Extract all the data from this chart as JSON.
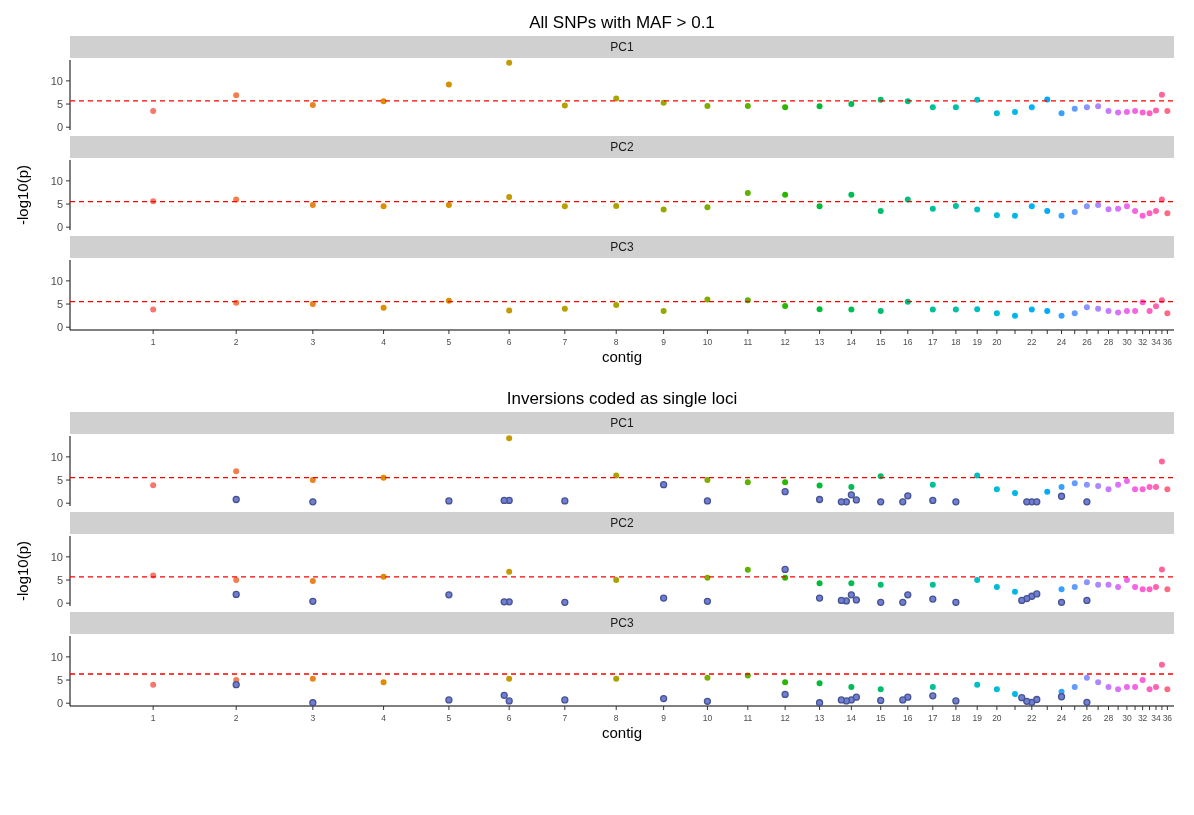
{
  "chart_data": [
    {
      "type": "scatter",
      "title": "All SNPs with MAF > 0.1",
      "subtitle": "PC1",
      "tick_labels": "y",
      "marker": "circle",
      "categories": [
        "1",
        "2",
        "3",
        "4",
        "5",
        "6",
        "7",
        "8",
        "9",
        "10",
        "11",
        "12",
        "13",
        "14",
        "15",
        "16",
        "17",
        "18",
        "19",
        "20",
        null,
        "22",
        null,
        "24",
        null,
        "26",
        null,
        "28",
        null,
        "30",
        null,
        "32",
        null,
        "34",
        null,
        "36"
      ],
      "ylim": [
        -0.6,
        14.5
      ],
      "yticks": [
        0,
        5,
        10
      ],
      "ref_lines": [
        {
          "axis": "y",
          "value": 5.7,
          "color": "#ff0000",
          "line_style": "dashed"
        }
      ],
      "series": [
        {
          "colors": [
            "#F8766D",
            "#F07E4F",
            "#E7851E",
            "#DE8C00",
            "#D29200",
            "#C59900",
            "#B79F00",
            "#A7A400",
            "#95A900",
            "#7CAE00",
            "#5EB300",
            "#2AB700",
            "#00BA38",
            "#00BC55",
            "#00BE6C",
            "#00C081",
            "#00C094",
            "#00C0A6",
            "#00BFC4",
            "#00BCD6",
            "#00B8E7",
            "#00B2F3",
            "#00ABFD",
            "#35A2FF",
            "#619CFF",
            "#8B93FF",
            "#AA88FF",
            "#C77CFF",
            "#DB72FB",
            "#EC69EF",
            "#F564E3",
            "#FC61D5",
            "#FF61C3",
            "#FF62B0",
            "#FF659C",
            "#FC6B86"
          ],
          "values": [
            3.5,
            6.9,
            4.8,
            5.6,
            9.2,
            13.9,
            4.7,
            6.2,
            5.3,
            4.6,
            4.6,
            4.3,
            4.5,
            5.0,
            5.9,
            5.6,
            4.3,
            4.3,
            5.9,
            3.0,
            3.3,
            4.3,
            6.0,
            3.0,
            4.0,
            4.3,
            4.5,
            3.5,
            3.2,
            3.3,
            3.5,
            3.2,
            3.0,
            3.6,
            7.0,
            3.5
          ]
        }
      ]
    },
    {
      "type": "scatter",
      "subtitle": "PC2",
      "ylabel": "-log10(p)",
      "tick_labels": "y",
      "marker": "circle",
      "categories": [
        "1",
        "2",
        "3",
        "4",
        "5",
        "6",
        "7",
        "8",
        "9",
        "10",
        "11",
        "12",
        "13",
        "14",
        "15",
        "16",
        "17",
        "18",
        "19",
        "20",
        null,
        "22",
        null,
        "24",
        null,
        "26",
        null,
        "28",
        null,
        "30",
        null,
        "32",
        null,
        "34",
        null,
        "36"
      ],
      "ylim": [
        -0.6,
        14.5
      ],
      "yticks": [
        0,
        5,
        10
      ],
      "ref_lines": [
        {
          "axis": "y",
          "value": 5.5,
          "color": "#ff0000",
          "line_style": "dashed"
        }
      ],
      "series": [
        {
          "colors": [
            "#F8766D",
            "#F07E4F",
            "#E7851E",
            "#DE8C00",
            "#D29200",
            "#C59900",
            "#B79F00",
            "#A7A400",
            "#95A900",
            "#7CAE00",
            "#5EB300",
            "#2AB700",
            "#00BA38",
            "#00BC55",
            "#00BE6C",
            "#00C081",
            "#00C094",
            "#00C0A6",
            "#00BFC4",
            "#00BCD6",
            "#00B8E7",
            "#00B2F3",
            "#00ABFD",
            "#35A2FF",
            "#619CFF",
            "#8B93FF",
            "#AA88FF",
            "#C77CFF",
            "#DB72FB",
            "#EC69EF",
            "#F564E3",
            "#FC61D5",
            "#FF61C3",
            "#FF62B0",
            "#FF659C",
            "#FC6B86"
          ],
          "values": [
            5.6,
            6.0,
            4.8,
            4.5,
            4.8,
            6.5,
            4.5,
            4.6,
            3.8,
            4.3,
            7.4,
            7.0,
            4.5,
            7.0,
            3.5,
            6.0,
            4.0,
            4.6,
            3.8,
            2.6,
            2.5,
            4.5,
            3.5,
            2.5,
            3.3,
            4.5,
            4.8,
            3.9,
            4.0,
            4.5,
            3.5,
            2.5,
            3.0,
            3.5,
            6.0,
            3.0
          ]
        }
      ]
    },
    {
      "type": "scatter",
      "subtitle": "PC3",
      "xlabel": "contig",
      "marker": "circle",
      "categories": [
        "1",
        "2",
        "3",
        "4",
        "5",
        "6",
        "7",
        "8",
        "9",
        "10",
        "11",
        "12",
        "13",
        "14",
        "15",
        "16",
        "17",
        "18",
        "19",
        "20",
        null,
        "22",
        null,
        "24",
        null,
        "26",
        null,
        "28",
        null,
        "30",
        null,
        "32",
        null,
        "34",
        null,
        "36"
      ],
      "ylim": [
        -0.6,
        14.5
      ],
      "yticks": [
        0,
        5,
        10
      ],
      "ref_lines": [
        {
          "axis": "y",
          "value": 5.5,
          "color": "#ff0000",
          "line_style": "dashed"
        }
      ],
      "series": [
        {
          "colors": [
            "#F8766D",
            "#F07E4F",
            "#E7851E",
            "#DE8C00",
            "#D29200",
            "#C59900",
            "#B79F00",
            "#A7A400",
            "#95A900",
            "#7CAE00",
            "#5EB300",
            "#2AB700",
            "#00BA38",
            "#00BC55",
            "#00BE6C",
            "#00C081",
            "#00C094",
            "#00C0A6",
            "#00BFC4",
            "#00BCD6",
            "#00B8E7",
            "#00B2F3",
            "#00ABFD",
            "#35A2FF",
            "#619CFF",
            "#8B93FF",
            "#AA88FF",
            "#C77CFF",
            "#DB72FB",
            "#EC69EF",
            "#F564E3",
            "#FC61D5",
            "#FF61C3",
            "#FF62B0",
            "#FF659C",
            "#FC6B86"
          ],
          "values": [
            3.8,
            5.3,
            5.0,
            4.2,
            5.7,
            3.6,
            4.0,
            4.8,
            3.5,
            6.0,
            5.8,
            4.6,
            3.9,
            3.8,
            3.5,
            5.5,
            3.8,
            3.8,
            3.9,
            3.0,
            2.5,
            3.8,
            3.5,
            2.5,
            3.0,
            4.3,
            4.0,
            3.5,
            3.2,
            3.5,
            3.5,
            5.4,
            3.5,
            4.5,
            5.8,
            3.0
          ]
        }
      ]
    },
    {
      "type": "scatter",
      "title": "Inversions coded as single loci",
      "subtitle": "PC1",
      "tick_labels": "y",
      "marker": "circle",
      "categories": [
        "1",
        "2",
        "3",
        "4",
        "5",
        "6",
        "7",
        "8",
        "9",
        "10",
        "11",
        "12",
        "13",
        "14",
        "15",
        "16",
        "17",
        "18",
        "19",
        "20",
        null,
        "22",
        null,
        "24",
        null,
        "26",
        null,
        "28",
        null,
        "30",
        null,
        "32",
        null,
        "34",
        null,
        "36"
      ],
      "ylim": [
        -0.6,
        14.5
      ],
      "yticks": [
        0,
        5,
        10
      ],
      "ref_lines": [
        {
          "axis": "y",
          "value": 5.5,
          "color": "#ff0000",
          "line_style": "dashed"
        }
      ],
      "series": [
        {
          "colors": [
            "#F8766D",
            "#F07E4F",
            "#E7851E",
            "#DE8C00",
            null,
            "#C59900",
            null,
            "#A7A400",
            null,
            "#7CAE00",
            "#5EB300",
            "#2AB700",
            "#00BA38",
            "#00BC55",
            "#00BE6C",
            null,
            "#00C094",
            null,
            "#00BFC4",
            "#00BCD6",
            "#00B8E7",
            null,
            "#00ABFD",
            "#35A2FF",
            "#619CFF",
            "#8B93FF",
            "#AA88FF",
            "#C77CFF",
            "#DB72FB",
            "#EC69EF",
            "#F564E3",
            "#FC61D5",
            "#FF61C3",
            "#FF62B0",
            "#FF659C",
            "#FC6B86"
          ],
          "values": [
            3.9,
            6.9,
            5.0,
            5.5,
            null,
            14.0,
            null,
            6.0,
            null,
            5.0,
            4.5,
            4.5,
            3.8,
            3.5,
            5.8,
            null,
            4.0,
            null,
            6.0,
            3.0,
            2.2,
            null,
            2.5,
            3.5,
            4.3,
            4.0,
            3.7,
            3.0,
            4.0,
            4.8,
            3.0,
            3.0,
            3.5,
            3.5,
            9.0,
            3.0
          ]
        },
        {
          "color": "#6f7fd8",
          "x": [
            "2",
            "3",
            "5",
            "6",
            "6",
            "7",
            "9",
            "10",
            "12",
            "13",
            "14",
            "14",
            "14",
            "14",
            "15",
            "16",
            "16",
            "17",
            "18",
            "22",
            "22",
            "22",
            "24",
            "26"
          ],
          "values": [
            0.8,
            0.3,
            0.5,
            0.6,
            0.6,
            0.5,
            4.0,
            0.5,
            2.5,
            0.8,
            1.8,
            0.3,
            0.7,
            0.3,
            0.3,
            1.6,
            0.3,
            0.6,
            0.3,
            0.3,
            0.3,
            0.3,
            1.5,
            0.3
          ]
        }
      ]
    },
    {
      "type": "scatter",
      "subtitle": "PC2",
      "ylabel": "-log10(p)",
      "tick_labels": "y",
      "marker": "circle",
      "categories": [
        "1",
        "2",
        "3",
        "4",
        "5",
        "6",
        "7",
        "8",
        "9",
        "10",
        "11",
        "12",
        "13",
        "14",
        "15",
        "16",
        "17",
        "18",
        "19",
        "20",
        null,
        "22",
        null,
        "24",
        null,
        "26",
        null,
        "28",
        null,
        "30",
        null,
        "32",
        null,
        "34",
        null,
        "36"
      ],
      "ylim": [
        -0.6,
        14.5
      ],
      "yticks": [
        0,
        5,
        10
      ],
      "ref_lines": [
        {
          "axis": "y",
          "value": 5.7,
          "color": "#ff0000",
          "line_style": "dashed"
        }
      ],
      "series": [
        {
          "colors": [
            "#F8766D",
            "#F07E4F",
            "#E7851E",
            "#DE8C00",
            null,
            "#C59900",
            null,
            "#A7A400",
            null,
            "#7CAE00",
            "#5EB300",
            "#2AB700",
            "#00BA38",
            "#00BC55",
            "#00BE6C",
            null,
            "#00C094",
            null,
            "#00BFC4",
            "#00BCD6",
            "#00B8E7",
            null,
            null,
            "#35A2FF",
            "#619CFF",
            "#8B93FF",
            "#AA88FF",
            "#C77CFF",
            "#DB72FB",
            "#EC69EF",
            "#F564E3",
            "#FC61D5",
            "#FF61C3",
            "#FF62B0",
            "#FF659C",
            "#FC6B86"
          ],
          "values": [
            6.0,
            5.0,
            4.8,
            5.7,
            null,
            6.8,
            null,
            5.0,
            null,
            5.5,
            7.2,
            5.5,
            4.3,
            4.3,
            4.0,
            null,
            4.0,
            null,
            5.0,
            3.5,
            2.5,
            null,
            null,
            3.0,
            3.5,
            4.5,
            4.0,
            4.0,
            3.5,
            5.0,
            3.5,
            3.0,
            3.0,
            3.5,
            7.3,
            3.0
          ]
        },
        {
          "color": "#6f7fd8",
          "x": [
            "2",
            "3",
            "5",
            "6",
            "6",
            "7",
            "9",
            "10",
            "12",
            "13",
            "14",
            "14",
            "14",
            "14",
            "15",
            "16",
            "16",
            "17",
            "18",
            "22",
            "22",
            "22",
            "22",
            "24",
            "26"
          ],
          "values": [
            1.9,
            0.4,
            1.8,
            0.3,
            0.3,
            0.2,
            1.1,
            0.4,
            7.3,
            1.1,
            1.8,
            0.5,
            0.7,
            0.6,
            0.2,
            1.8,
            0.2,
            0.9,
            0.2,
            1.5,
            1.0,
            2.0,
            0.6,
            0.2,
            0.6
          ]
        }
      ]
    },
    {
      "type": "scatter",
      "subtitle": "PC3",
      "xlabel": "contig",
      "marker": "circle",
      "categories": [
        "1",
        "2",
        "3",
        "4",
        "5",
        "6",
        "7",
        "8",
        "9",
        "10",
        "11",
        "12",
        "13",
        "14",
        "15",
        "16",
        "17",
        "18",
        "19",
        "20",
        null,
        "22",
        null,
        "24",
        null,
        "26",
        null,
        "28",
        null,
        "30",
        null,
        "32",
        null,
        "34",
        null,
        "36"
      ],
      "ylim": [
        -0.6,
        14.5
      ],
      "yticks": [
        0,
        5,
        10
      ],
      "ref_lines": [
        {
          "axis": "y",
          "value": 6.3,
          "color": "#ff0000",
          "line_style": "dashed"
        }
      ],
      "series": [
        {
          "colors": [
            "#F8766D",
            "#F07E4F",
            "#E7851E",
            "#DE8C00",
            null,
            "#C59900",
            null,
            "#A7A400",
            null,
            "#7CAE00",
            "#5EB300",
            "#2AB700",
            "#00BA38",
            "#00BC55",
            "#00BE6C",
            null,
            "#00C094",
            null,
            "#00BFC4",
            "#00BCD6",
            "#00B8E7",
            null,
            null,
            "#35A2FF",
            "#619CFF",
            "#8B93FF",
            "#AA88FF",
            "#C77CFF",
            "#DB72FB",
            "#EC69EF",
            "#F564E3",
            "#FC61D5",
            "#FF61C3",
            "#FF62B0",
            "#FF659C",
            "#FC6B86"
          ],
          "values": [
            4.0,
            5.0,
            5.3,
            4.5,
            null,
            5.3,
            null,
            5.3,
            null,
            5.5,
            6.0,
            4.5,
            4.3,
            3.5,
            3.0,
            null,
            3.5,
            null,
            4.0,
            3.0,
            2.0,
            null,
            null,
            2.5,
            3.5,
            5.5,
            4.5,
            3.5,
            3.0,
            3.5,
            3.5,
            5.0,
            3.0,
            3.5,
            8.3,
            3.0
          ]
        },
        {
          "color": "#6f7fd8",
          "x": [
            "2",
            "3",
            "5",
            "6",
            "6",
            "7",
            "9",
            "10",
            "12",
            "13",
            "14",
            "14",
            "14",
            "14",
            "15",
            "16",
            "16",
            "17",
            "18",
            "22",
            "22",
            "22",
            "22",
            "24",
            "26"
          ],
          "values": [
            4.0,
            0.1,
            0.7,
            0.5,
            1.7,
            0.7,
            1.0,
            0.4,
            1.9,
            0.1,
            0.7,
            0.5,
            1.3,
            0.7,
            0.6,
            1.3,
            0.7,
            1.6,
            0.5,
            0.2,
            0.4,
            0.8,
            1.2,
            1.4,
            0.2
          ]
        }
      ]
    }
  ]
}
